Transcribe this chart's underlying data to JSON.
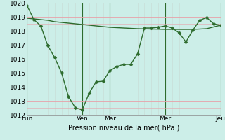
{
  "xlabel": "Pression niveau de la mer( hPa )",
  "ylim": [
    1012,
    1020
  ],
  "yticks": [
    1012,
    1013,
    1014,
    1015,
    1016,
    1017,
    1018,
    1019,
    1020
  ],
  "bg_color": "#cceee8",
  "hgrid_color": "#e8a0a8",
  "vgrid_color": "#c8ddd8",
  "dayline_color": "#2d6b2d",
  "line_color": "#2d6b2d",
  "day_labels": [
    "Lun",
    "Ven",
    "Mar",
    "Mer",
    "Jeu"
  ],
  "day_positions": [
    0,
    48,
    72,
    120,
    168
  ],
  "xlim": [
    0,
    168
  ],
  "series1_x": [
    0,
    6,
    12,
    18,
    24,
    30,
    36,
    42,
    48,
    54,
    60,
    66,
    72,
    78,
    84,
    90,
    96,
    102,
    108,
    114,
    120,
    126,
    132,
    138,
    144,
    150,
    156,
    162,
    168
  ],
  "series1_y": [
    1019.8,
    1018.8,
    1018.35,
    1016.95,
    1016.1,
    1015.0,
    1013.3,
    1012.5,
    1012.35,
    1013.55,
    1014.35,
    1014.4,
    1015.15,
    1015.45,
    1015.6,
    1015.6,
    1016.35,
    1018.2,
    1018.2,
    1018.25,
    1018.35,
    1018.2,
    1017.85,
    1017.2,
    1018.05,
    1018.75,
    1018.95,
    1018.5,
    1018.4
  ],
  "series2_x": [
    0,
    6,
    12,
    18,
    24,
    36,
    48,
    60,
    72,
    96,
    120,
    144,
    156,
    168
  ],
  "series2_y": [
    1018.9,
    1018.85,
    1018.8,
    1018.75,
    1018.65,
    1018.55,
    1018.45,
    1018.35,
    1018.25,
    1018.15,
    1018.1,
    1018.1,
    1018.15,
    1018.4
  ],
  "marker_size": 2.5,
  "linewidth1": 1.0,
  "linewidth2": 1.0,
  "xlabel_fontsize": 7,
  "tick_fontsize": 6.5
}
